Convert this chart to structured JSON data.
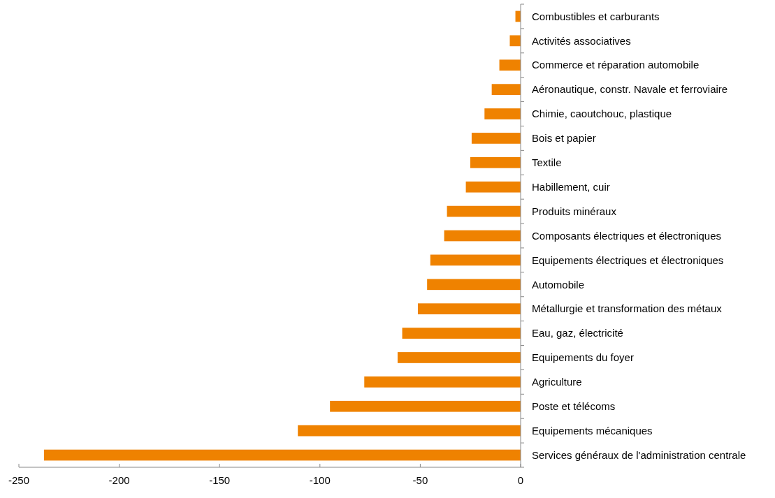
{
  "chart_data": {
    "type": "bar",
    "orientation": "horizontal",
    "categories": [
      "Combustibles et carburants",
      "Activités associatives",
      "Commerce et réparation automobile",
      "Aéronautique, constr. Navale et ferroviaire",
      "Chimie, caoutchouc, plastique",
      "Bois et papier",
      "Textile",
      "Habillement, cuir",
      "Produits minéraux",
      "Composants électriques et électroniques",
      "Equipements électriques et électroniques",
      "Automobile",
      "Métallurgie et transformation des métaux",
      "Eau, gaz, électricité",
      "Equipements du foyer",
      "Agriculture",
      "Poste et télécoms",
      "Equipements mécaniques",
      "Services généraux de l'administration centrale"
    ],
    "values": [
      -2.6,
      -5.4,
      -10.6,
      -14.4,
      -18,
      -24.4,
      -25.1,
      -27.3,
      -36.7,
      -38.1,
      -45,
      -46.6,
      -51.2,
      -59,
      -61.3,
      -77.9,
      -95,
      -111,
      -237.5
    ],
    "color": "#ef8200",
    "xlim": [
      -250,
      0
    ],
    "xticks": [
      -250,
      -200,
      -150,
      -100,
      -50,
      0
    ],
    "grid": false
  }
}
